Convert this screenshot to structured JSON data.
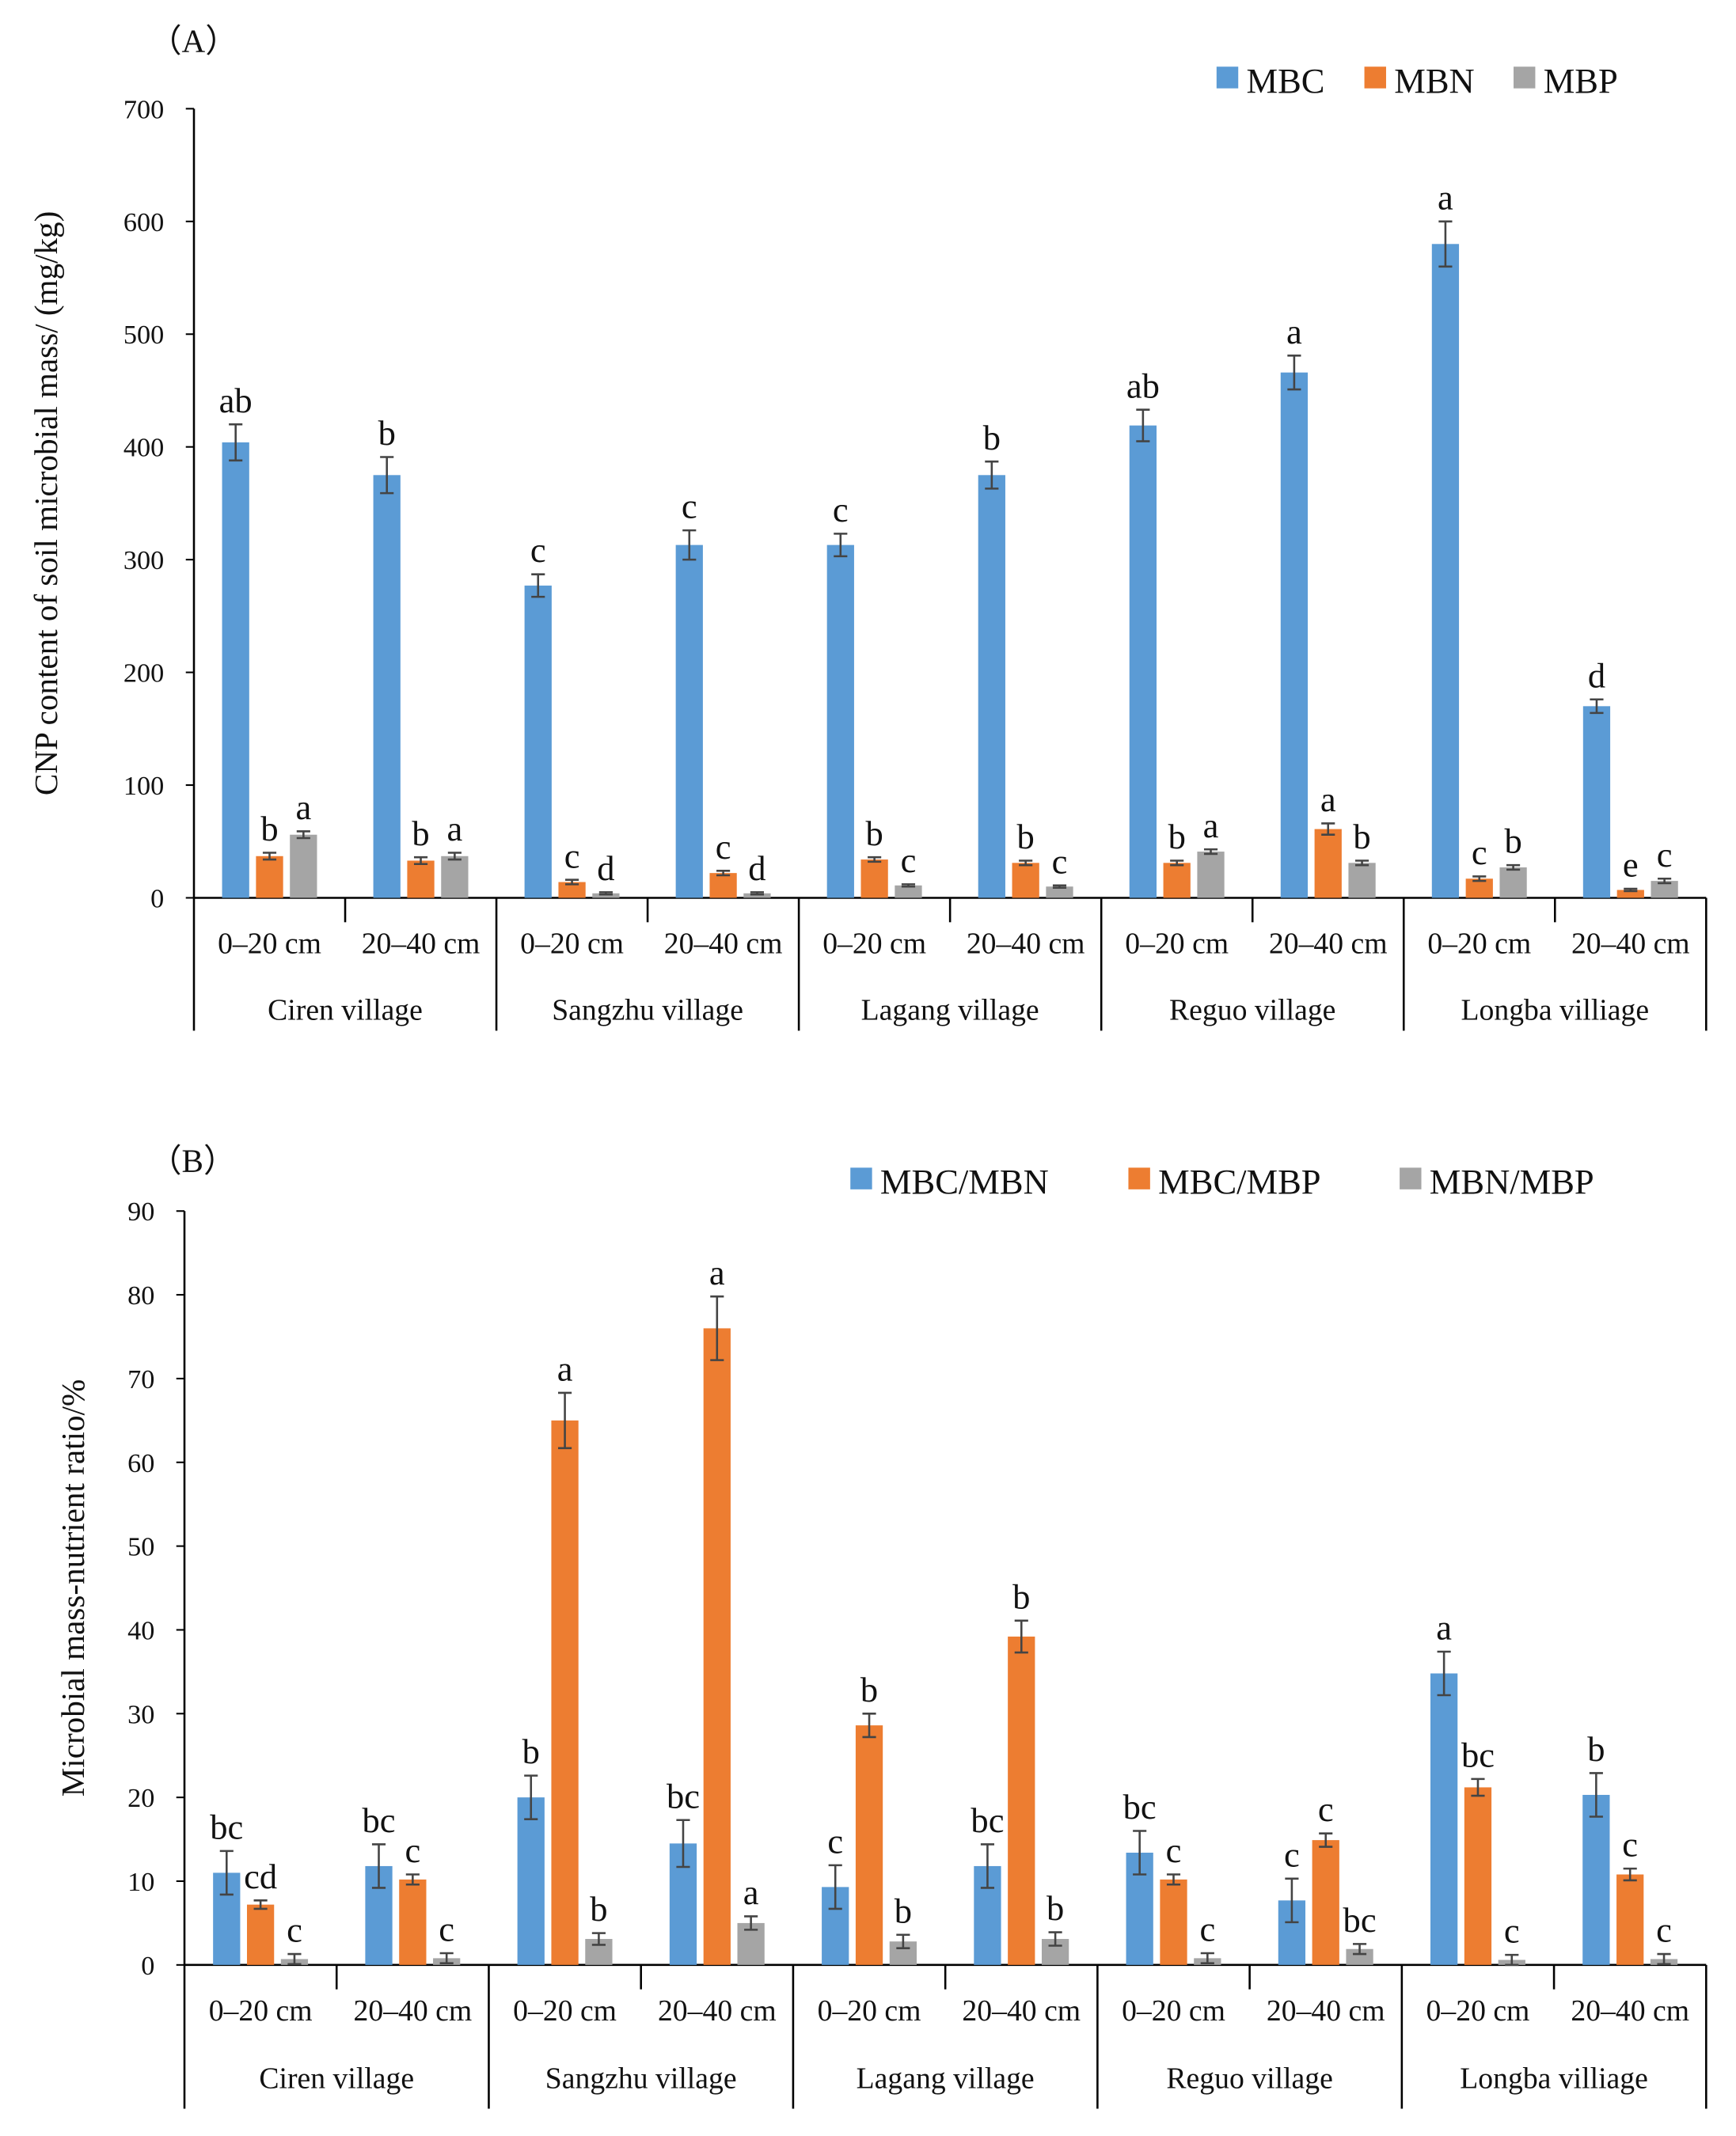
{
  "chart_data": [
    {
      "type": "bar",
      "panel_label": "（A）",
      "ylabel": "CNP content of soil microbial mass/ (mg/kg)",
      "ylim": [
        0,
        700
      ],
      "yticks": [
        0,
        100,
        200,
        300,
        400,
        500,
        600,
        700
      ],
      "legend_position": "top-right",
      "groups": [
        "Ciren village",
        "Sangzhu village",
        "Lagang village",
        "Reguo village",
        "Longba villiage"
      ],
      "depths": [
        "0–20 cm",
        "20–40 cm"
      ],
      "series": [
        {
          "name": "MBC",
          "color": "#5b9bd5",
          "values": [
            404,
            375,
            277,
            313,
            313,
            375,
            419,
            466,
            580,
            170
          ],
          "errors": [
            16,
            16,
            10,
            13,
            10,
            12,
            14,
            15,
            20,
            6
          ],
          "letters": [
            "ab",
            "b",
            "c",
            "c",
            "c",
            "b",
            "ab",
            "a",
            "a",
            "d"
          ]
        },
        {
          "name": "MBN",
          "color": "#ed7d31",
          "values": [
            37,
            33,
            14,
            22,
            34,
            31,
            31,
            61,
            17,
            7
          ],
          "errors": [
            3,
            3,
            2,
            2,
            2,
            2,
            2,
            5,
            2,
            1
          ],
          "letters": [
            "b",
            "b",
            "c",
            "c",
            "b",
            "b",
            "b",
            "a",
            "c",
            "e"
          ]
        },
        {
          "name": "MBP",
          "color": "#a5a5a5",
          "values": [
            56,
            37,
            4,
            4,
            11,
            10,
            41,
            31,
            27,
            15
          ],
          "errors": [
            3,
            3,
            1,
            1,
            1,
            1,
            2,
            2,
            2,
            2
          ],
          "letters": [
            "a",
            "a",
            "d",
            "d",
            "c",
            "c",
            "a",
            "b",
            "b",
            "c"
          ]
        }
      ]
    },
    {
      "type": "bar",
      "panel_label": "（B）",
      "ylabel": "Microbial mass-nutrient ratio/%",
      "ylim": [
        0,
        90
      ],
      "yticks": [
        0,
        10,
        20,
        30,
        40,
        50,
        60,
        70,
        80,
        90
      ],
      "legend_position": "top-right",
      "groups": [
        "Ciren village",
        "Sangzhu village",
        "Lagang village",
        "Reguo village",
        "Longba villiage"
      ],
      "depths": [
        "0–20 cm",
        "20–40 cm"
      ],
      "series": [
        {
          "name": "MBC/MBN",
          "color": "#5b9bd5",
          "values": [
            11.0,
            11.8,
            20.0,
            14.5,
            9.3,
            11.8,
            13.4,
            7.7,
            34.8,
            20.3
          ],
          "errors": [
            2.6,
            2.6,
            2.6,
            2.8,
            2.6,
            2.6,
            2.6,
            2.6,
            2.6,
            2.6
          ],
          "letters": [
            "bc",
            "bc",
            "b",
            "bc",
            "c",
            "bc",
            "bc",
            "c",
            "a",
            "b"
          ]
        },
        {
          "name": "MBC/MBP",
          "color": "#ed7d31",
          "values": [
            7.2,
            10.2,
            65.0,
            76.0,
            28.6,
            39.2,
            10.2,
            14.9,
            21.2,
            10.8
          ],
          "errors": [
            0.5,
            0.6,
            3.3,
            3.8,
            1.4,
            1.9,
            0.6,
            0.8,
            1.0,
            0.7
          ],
          "letters": [
            "cd",
            "c",
            "a",
            "a",
            "b",
            "b",
            "c",
            "c",
            "bc",
            "c"
          ]
        },
        {
          "name": "MBN/MBP",
          "color": "#a5a5a5",
          "values": [
            0.7,
            0.8,
            3.1,
            5.0,
            2.8,
            3.1,
            0.8,
            1.9,
            0.6,
            0.7
          ],
          "errors": [
            0.6,
            0.6,
            0.7,
            0.8,
            0.8,
            0.8,
            0.6,
            0.6,
            0.6,
            0.6
          ],
          "letters": [
            "c",
            "c",
            "b",
            "a",
            "b",
            "b",
            "c",
            "bc",
            "c",
            "c"
          ]
        }
      ]
    }
  ]
}
